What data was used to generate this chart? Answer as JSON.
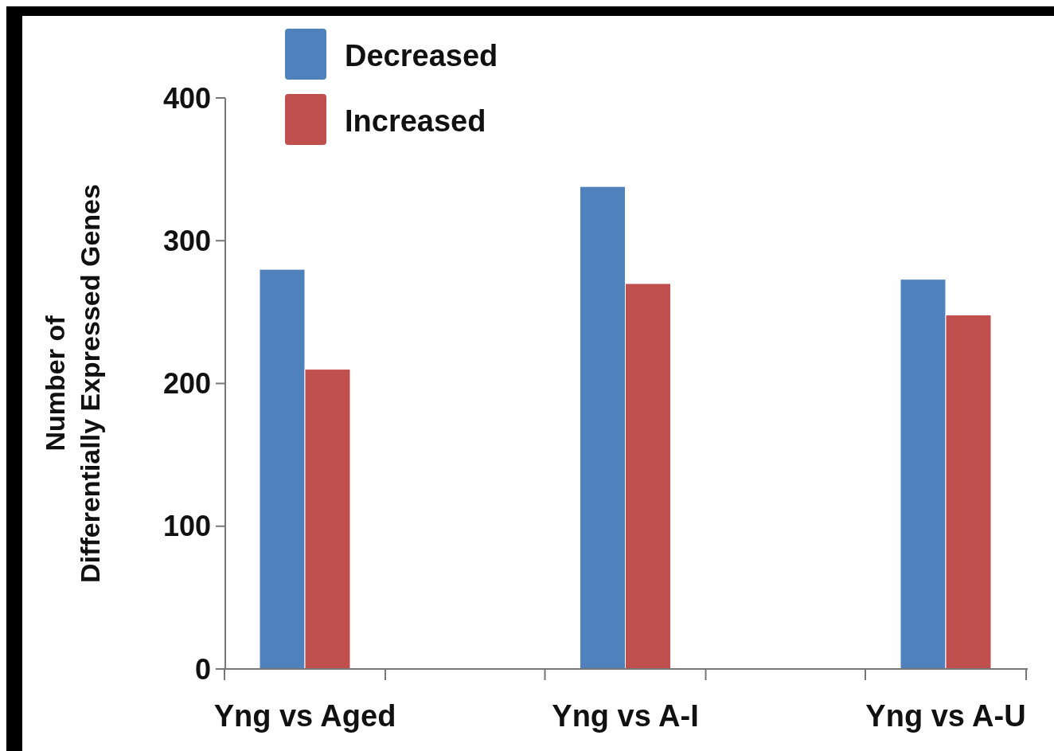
{
  "chart_data": {
    "type": "bar",
    "ylabel": "Number of\nDifferentially Expressed Genes",
    "categories": [
      "Yng vs Aged",
      "Yng vs A-I",
      "Yng vs A-U"
    ],
    "series": [
      {
        "name": "Decreased",
        "color": "#4f81bd",
        "values": [
          280,
          338,
          273
        ]
      },
      {
        "name": "Increased",
        "color": "#c0504d",
        "values": [
          210,
          270,
          248
        ]
      }
    ],
    "ylim": [
      0,
      400
    ],
    "yticks": [
      0,
      100,
      200,
      300,
      400
    ],
    "grid": false,
    "legend": "top left"
  }
}
